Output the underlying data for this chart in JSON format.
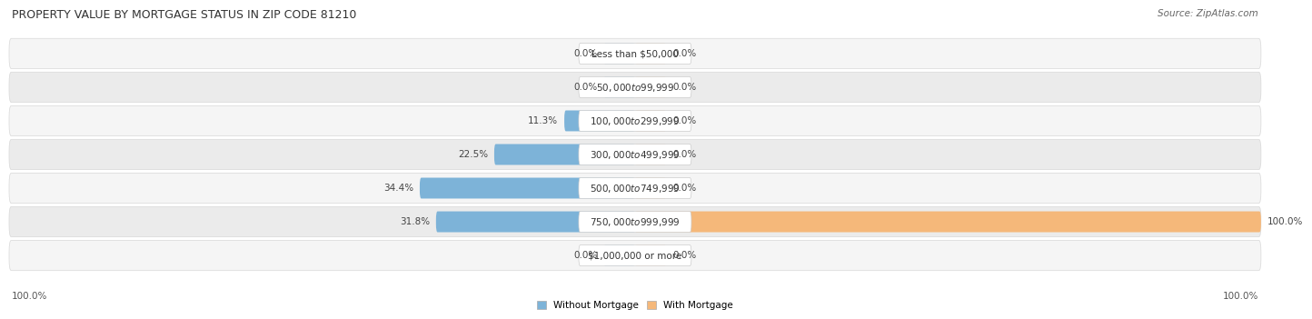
{
  "title": "PROPERTY VALUE BY MORTGAGE STATUS IN ZIP CODE 81210",
  "source_text": "Source: ZipAtlas.com",
  "categories": [
    "Less than $50,000",
    "$50,000 to $99,999",
    "$100,000 to $299,999",
    "$300,000 to $499,999",
    "$500,000 to $749,999",
    "$750,000 to $999,999",
    "$1,000,000 or more"
  ],
  "without_mortgage": [
    0.0,
    0.0,
    11.3,
    22.5,
    34.4,
    31.8,
    0.0
  ],
  "with_mortgage": [
    0.0,
    0.0,
    0.0,
    0.0,
    0.0,
    100.0,
    0.0
  ],
  "without_mortgage_color": "#7db3d8",
  "with_mortgage_color": "#f5b87a",
  "label_fontsize": 7.5,
  "title_fontsize": 9,
  "source_fontsize": 7.5,
  "axis_label_fontsize": 7.5,
  "max_val": 100.0,
  "min_bar_display": 5.0,
  "legend_labels": [
    "Without Mortgage",
    "With Mortgage"
  ],
  "legend_colors": [
    "#7db3d8",
    "#f5b87a"
  ],
  "bottom_left_label": "100.0%",
  "bottom_right_label": "100.0%",
  "row_colors": [
    "#f5f5f5",
    "#ebebeb"
  ],
  "row_border_color": "#d8d8d8"
}
